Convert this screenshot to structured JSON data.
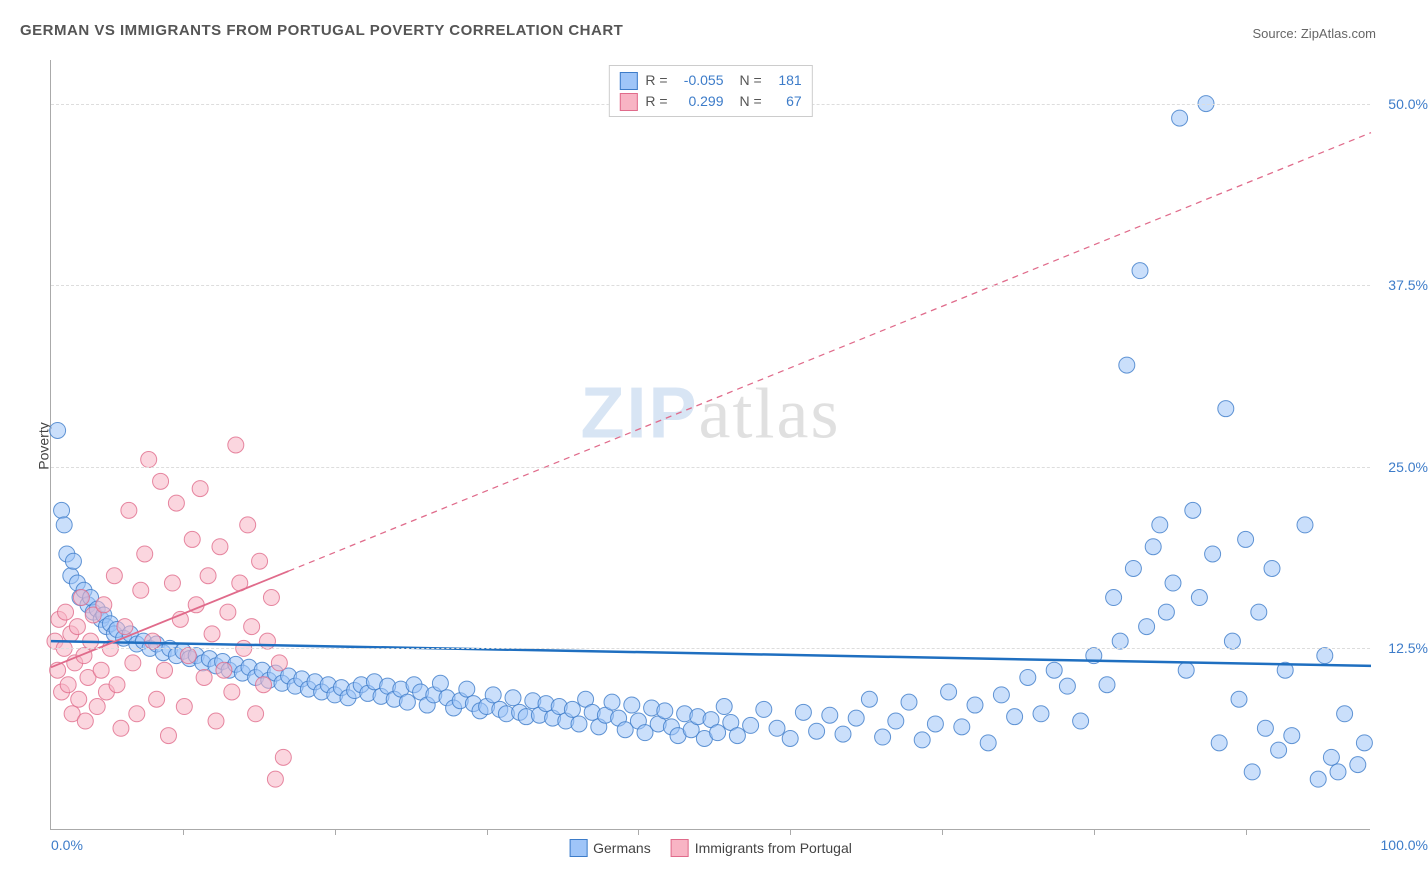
{
  "title": "GERMAN VS IMMIGRANTS FROM PORTUGAL POVERTY CORRELATION CHART",
  "source": "Source: ZipAtlas.com",
  "watermark_zip": "ZIP",
  "watermark_rest": "atlas",
  "y_axis_title": "Poverty",
  "chart": {
    "type": "scatter",
    "background_color": "#ffffff",
    "grid_color": "#dddddd",
    "axis_color": "#aaaaaa",
    "xlim": [
      0,
      100
    ],
    "ylim": [
      0,
      53
    ],
    "x_label_min": "0.0%",
    "x_label_max": "100.0%",
    "xtick_positions": [
      10,
      21.5,
      33,
      44.5,
      56,
      67.5,
      79,
      90.5
    ],
    "y_ticks": [
      {
        "value": 12.5,
        "label": "12.5%"
      },
      {
        "value": 25.0,
        "label": "25.0%"
      },
      {
        "value": 37.5,
        "label": "37.5%"
      },
      {
        "value": 50.0,
        "label": "50.0%"
      }
    ],
    "marker_radius": 8,
    "marker_opacity": 0.55,
    "series": [
      {
        "name": "Germans",
        "fill_color": "#9fc5f8",
        "stroke_color": "#3d7cc9",
        "R_label": "R =",
        "R_value": "-0.055",
        "N_label": "N =",
        "N_value": "181",
        "trend": {
          "x1": 0,
          "y1": 13.0,
          "x2": 100,
          "y2": 11.3,
          "solid_until": 100,
          "color": "#1f6fc0",
          "width": 2.5
        },
        "points": [
          [
            0.5,
            27.5
          ],
          [
            0.8,
            22
          ],
          [
            1,
            21
          ],
          [
            1.2,
            19
          ],
          [
            1.5,
            17.5
          ],
          [
            1.7,
            18.5
          ],
          [
            2,
            17
          ],
          [
            2.2,
            16
          ],
          [
            2.5,
            16.5
          ],
          [
            2.8,
            15.5
          ],
          [
            3,
            16
          ],
          [
            3.2,
            15
          ],
          [
            3.5,
            15.2
          ],
          [
            3.8,
            14.5
          ],
          [
            4,
            14.8
          ],
          [
            4.2,
            14
          ],
          [
            4.5,
            14.2
          ],
          [
            4.8,
            13.5
          ],
          [
            5,
            13.8
          ],
          [
            5.5,
            13.2
          ],
          [
            6,
            13.5
          ],
          [
            6.5,
            12.8
          ],
          [
            7,
            13
          ],
          [
            7.5,
            12.5
          ],
          [
            8,
            12.8
          ],
          [
            8.5,
            12.2
          ],
          [
            9,
            12.5
          ],
          [
            9.5,
            12
          ],
          [
            10,
            12.3
          ],
          [
            10.5,
            11.8
          ],
          [
            11,
            12
          ],
          [
            11.5,
            11.5
          ],
          [
            12,
            11.8
          ],
          [
            12.5,
            11.3
          ],
          [
            13,
            11.6
          ],
          [
            13.5,
            11
          ],
          [
            14,
            11.4
          ],
          [
            14.5,
            10.8
          ],
          [
            15,
            11.2
          ],
          [
            15.5,
            10.5
          ],
          [
            16,
            11
          ],
          [
            16.5,
            10.3
          ],
          [
            17,
            10.8
          ],
          [
            17.5,
            10.1
          ],
          [
            18,
            10.6
          ],
          [
            18.5,
            9.9
          ],
          [
            19,
            10.4
          ],
          [
            19.5,
            9.7
          ],
          [
            20,
            10.2
          ],
          [
            20.5,
            9.5
          ],
          [
            21,
            10
          ],
          [
            21.5,
            9.3
          ],
          [
            22,
            9.8
          ],
          [
            22.5,
            9.1
          ],
          [
            23,
            9.6
          ],
          [
            23.5,
            10
          ],
          [
            24,
            9.4
          ],
          [
            24.5,
            10.2
          ],
          [
            25,
            9.2
          ],
          [
            25.5,
            9.9
          ],
          [
            26,
            9
          ],
          [
            26.5,
            9.7
          ],
          [
            27,
            8.8
          ],
          [
            27.5,
            10
          ],
          [
            28,
            9.5
          ],
          [
            28.5,
            8.6
          ],
          [
            29,
            9.3
          ],
          [
            29.5,
            10.1
          ],
          [
            30,
            9.1
          ],
          [
            30.5,
            8.4
          ],
          [
            31,
            8.9
          ],
          [
            31.5,
            9.7
          ],
          [
            32,
            8.7
          ],
          [
            32.5,
            8.2
          ],
          [
            33,
            8.5
          ],
          [
            33.5,
            9.3
          ],
          [
            34,
            8.3
          ],
          [
            34.5,
            8
          ],
          [
            35,
            9.1
          ],
          [
            35.5,
            8.1
          ],
          [
            36,
            7.8
          ],
          [
            36.5,
            8.9
          ],
          [
            37,
            7.9
          ],
          [
            37.5,
            8.7
          ],
          [
            38,
            7.7
          ],
          [
            38.5,
            8.5
          ],
          [
            39,
            7.5
          ],
          [
            39.5,
            8.3
          ],
          [
            40,
            7.3
          ],
          [
            40.5,
            9
          ],
          [
            41,
            8.1
          ],
          [
            41.5,
            7.1
          ],
          [
            42,
            7.9
          ],
          [
            42.5,
            8.8
          ],
          [
            43,
            7.7
          ],
          [
            43.5,
            6.9
          ],
          [
            44,
            8.6
          ],
          [
            44.5,
            7.5
          ],
          [
            45,
            6.7
          ],
          [
            45.5,
            8.4
          ],
          [
            46,
            7.3
          ],
          [
            46.5,
            8.2
          ],
          [
            47,
            7.1
          ],
          [
            47.5,
            6.5
          ],
          [
            48,
            8
          ],
          [
            48.5,
            6.9
          ],
          [
            49,
            7.8
          ],
          [
            49.5,
            6.3
          ],
          [
            50,
            7.6
          ],
          [
            50.5,
            6.7
          ],
          [
            51,
            8.5
          ],
          [
            51.5,
            7.4
          ],
          [
            52,
            6.5
          ],
          [
            53,
            7.2
          ],
          [
            54,
            8.3
          ],
          [
            55,
            7
          ],
          [
            56,
            6.3
          ],
          [
            57,
            8.1
          ],
          [
            58,
            6.8
          ],
          [
            59,
            7.9
          ],
          [
            60,
            6.6
          ],
          [
            61,
            7.7
          ],
          [
            62,
            9
          ],
          [
            63,
            6.4
          ],
          [
            64,
            7.5
          ],
          [
            65,
            8.8
          ],
          [
            66,
            6.2
          ],
          [
            67,
            7.3
          ],
          [
            68,
            9.5
          ],
          [
            69,
            7.1
          ],
          [
            70,
            8.6
          ],
          [
            71,
            6
          ],
          [
            72,
            9.3
          ],
          [
            73,
            7.8
          ],
          [
            74,
            10.5
          ],
          [
            75,
            8
          ],
          [
            76,
            11
          ],
          [
            77,
            9.9
          ],
          [
            78,
            7.5
          ],
          [
            79,
            12
          ],
          [
            80,
            10
          ],
          [
            80.5,
            16
          ],
          [
            81,
            13
          ],
          [
            81.5,
            32
          ],
          [
            82,
            18
          ],
          [
            82.5,
            38.5
          ],
          [
            83,
            14
          ],
          [
            83.5,
            19.5
          ],
          [
            84,
            21
          ],
          [
            84.5,
            15
          ],
          [
            85,
            17
          ],
          [
            85.5,
            49
          ],
          [
            86,
            11
          ],
          [
            86.5,
            22
          ],
          [
            87,
            16
          ],
          [
            87.5,
            50
          ],
          [
            88,
            19
          ],
          [
            88.5,
            6
          ],
          [
            89,
            29
          ],
          [
            89.5,
            13
          ],
          [
            90,
            9
          ],
          [
            90.5,
            20
          ],
          [
            91,
            4
          ],
          [
            91.5,
            15
          ],
          [
            92,
            7
          ],
          [
            92.5,
            18
          ],
          [
            93,
            5.5
          ],
          [
            93.5,
            11
          ],
          [
            94,
            6.5
          ],
          [
            95,
            21
          ],
          [
            96,
            3.5
          ],
          [
            96.5,
            12
          ],
          [
            97,
            5
          ],
          [
            97.5,
            4
          ],
          [
            98,
            8
          ],
          [
            99,
            4.5
          ],
          [
            99.5,
            6
          ]
        ]
      },
      {
        "name": "Immigrants from Portugal",
        "fill_color": "#f8b4c4",
        "stroke_color": "#e06b8b",
        "R_label": "R =",
        "R_value": "0.299",
        "N_label": "N =",
        "N_value": "67",
        "trend": {
          "x1": 0,
          "y1": 11.2,
          "x2": 100,
          "y2": 48,
          "solid_until": 18,
          "color": "#e06b8b",
          "width": 1.8
        },
        "points": [
          [
            0.3,
            13
          ],
          [
            0.5,
            11
          ],
          [
            0.6,
            14.5
          ],
          [
            0.8,
            9.5
          ],
          [
            1,
            12.5
          ],
          [
            1.1,
            15
          ],
          [
            1.3,
            10
          ],
          [
            1.5,
            13.5
          ],
          [
            1.6,
            8
          ],
          [
            1.8,
            11.5
          ],
          [
            2,
            14
          ],
          [
            2.1,
            9
          ],
          [
            2.3,
            16
          ],
          [
            2.5,
            12
          ],
          [
            2.6,
            7.5
          ],
          [
            2.8,
            10.5
          ],
          [
            3,
            13
          ],
          [
            3.2,
            14.8
          ],
          [
            3.5,
            8.5
          ],
          [
            3.8,
            11
          ],
          [
            4,
            15.5
          ],
          [
            4.2,
            9.5
          ],
          [
            4.5,
            12.5
          ],
          [
            4.8,
            17.5
          ],
          [
            5,
            10
          ],
          [
            5.3,
            7
          ],
          [
            5.6,
            14
          ],
          [
            5.9,
            22
          ],
          [
            6.2,
            11.5
          ],
          [
            6.5,
            8
          ],
          [
            6.8,
            16.5
          ],
          [
            7.1,
            19
          ],
          [
            7.4,
            25.5
          ],
          [
            7.7,
            13
          ],
          [
            8,
            9
          ],
          [
            8.3,
            24
          ],
          [
            8.6,
            11
          ],
          [
            8.9,
            6.5
          ],
          [
            9.2,
            17
          ],
          [
            9.5,
            22.5
          ],
          [
            9.8,
            14.5
          ],
          [
            10.1,
            8.5
          ],
          [
            10.4,
            12
          ],
          [
            10.7,
            20
          ],
          [
            11,
            15.5
          ],
          [
            11.3,
            23.5
          ],
          [
            11.6,
            10.5
          ],
          [
            11.9,
            17.5
          ],
          [
            12.2,
            13.5
          ],
          [
            12.5,
            7.5
          ],
          [
            12.8,
            19.5
          ],
          [
            13.1,
            11
          ],
          [
            13.4,
            15
          ],
          [
            13.7,
            9.5
          ],
          [
            14,
            26.5
          ],
          [
            14.3,
            17
          ],
          [
            14.6,
            12.5
          ],
          [
            14.9,
            21
          ],
          [
            15.2,
            14
          ],
          [
            15.5,
            8
          ],
          [
            15.8,
            18.5
          ],
          [
            16.1,
            10
          ],
          [
            16.4,
            13
          ],
          [
            16.7,
            16
          ],
          [
            17,
            3.5
          ],
          [
            17.3,
            11.5
          ],
          [
            17.6,
            5
          ]
        ]
      }
    ],
    "legend_bottom": [
      {
        "label": "Germans",
        "fill": "#9fc5f8",
        "stroke": "#3d7cc9"
      },
      {
        "label": "Immigrants from Portugal",
        "fill": "#f8b4c4",
        "stroke": "#e06b8b"
      }
    ]
  }
}
